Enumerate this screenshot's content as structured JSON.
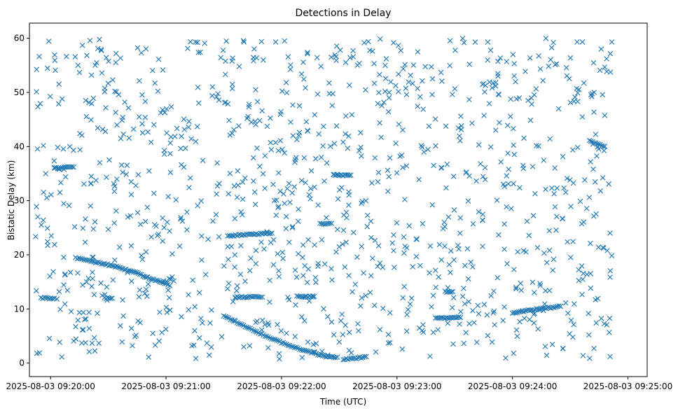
{
  "chart_data": {
    "type": "scatter",
    "title": "Detections in Delay",
    "xlabel": "Time (UTC)",
    "ylabel": "Bistatic Delay (km)",
    "marker": "x",
    "color": "#1f77b4",
    "grid": false,
    "xlim": [
      "2025-08-03 09:19:49",
      "2025-08-03 09:25:10"
    ],
    "ylim": [
      -2.5,
      62.8
    ],
    "x_ticks": [
      "2025-08-03 09:20:00",
      "2025-08-03 09:21:00",
      "2025-08-03 09:22:00",
      "2025-08-03 09:23:00",
      "2025-08-03 09:24:00",
      "2025-08-03 09:25:00"
    ],
    "y_ticks": [
      0,
      10,
      20,
      30,
      40,
      50,
      60
    ],
    "x_range_data": [
      "2025-08-03 09:19:52",
      "2025-08-03 09:24:52"
    ],
    "series": [
      {
        "kind": "track",
        "points": [
          [
            "2025-08-03 09:20:13",
            19.4
          ],
          [
            "2025-08-03 09:20:20",
            18.9
          ],
          [
            "2025-08-03 09:20:28",
            18.3
          ],
          [
            "2025-08-03 09:20:36",
            17.6
          ],
          [
            "2025-08-03 09:20:44",
            16.7
          ],
          [
            "2025-08-03 09:20:52",
            15.6
          ],
          [
            "2025-08-03 09:21:00",
            14.6
          ],
          [
            "2025-08-03 09:21:02",
            14.3
          ]
        ]
      },
      {
        "kind": "track",
        "points": [
          [
            "2025-08-03 09:21:30",
            8.7
          ],
          [
            "2025-08-03 09:21:36",
            7.6
          ],
          [
            "2025-08-03 09:21:42",
            6.6
          ],
          [
            "2025-08-03 09:21:48",
            5.6
          ],
          [
            "2025-08-03 09:21:54",
            4.7
          ],
          [
            "2025-08-03 09:22:00",
            3.8
          ],
          [
            "2025-08-03 09:22:06",
            3.0
          ],
          [
            "2025-08-03 09:22:12",
            2.3
          ],
          [
            "2025-08-03 09:22:18",
            1.7
          ],
          [
            "2025-08-03 09:22:24",
            1.2
          ],
          [
            "2025-08-03 09:22:28",
            1.0
          ]
        ]
      },
      {
        "kind": "track",
        "points": [
          [
            "2025-08-03 09:22:32",
            0.7
          ],
          [
            "2025-08-03 09:22:38",
            0.8
          ],
          [
            "2025-08-03 09:22:44",
            1.2
          ]
        ]
      },
      {
        "kind": "track",
        "points": [
          [
            "2025-08-03 09:19:55",
            12.0
          ],
          [
            "2025-08-03 09:20:02",
            12.0
          ]
        ]
      },
      {
        "kind": "track",
        "points": [
          [
            "2025-08-03 09:21:36",
            12.2
          ],
          [
            "2025-08-03 09:21:50",
            12.2
          ]
        ]
      },
      {
        "kind": "track",
        "points": [
          [
            "2025-08-03 09:21:32",
            23.5
          ],
          [
            "2025-08-03 09:21:55",
            24.0
          ]
        ]
      },
      {
        "kind": "track",
        "points": [
          [
            "2025-08-03 09:22:27",
            34.7
          ],
          [
            "2025-08-03 09:22:36",
            34.7
          ]
        ]
      },
      {
        "kind": "track",
        "points": [
          [
            "2025-08-03 09:22:20",
            25.7
          ],
          [
            "2025-08-03 09:22:26",
            25.8
          ]
        ]
      },
      {
        "kind": "track",
        "points": [
          [
            "2025-08-03 09:22:08",
            12.3
          ],
          [
            "2025-08-03 09:22:17",
            12.3
          ]
        ]
      },
      {
        "kind": "track",
        "points": [
          [
            "2025-08-03 09:23:20",
            8.3
          ],
          [
            "2025-08-03 09:23:33",
            8.4
          ]
        ]
      },
      {
        "kind": "track",
        "points": [
          [
            "2025-08-03 09:24:00",
            9.3
          ],
          [
            "2025-08-03 09:24:25",
            10.5
          ]
        ]
      },
      {
        "kind": "track",
        "points": [
          [
            "2025-08-03 09:24:40",
            41.0
          ],
          [
            "2025-08-03 09:24:48",
            40.0
          ]
        ]
      },
      {
        "kind": "track",
        "points": [
          [
            "2025-08-03 09:20:28",
            12.0
          ],
          [
            "2025-08-03 09:20:32",
            12.0
          ]
        ]
      },
      {
        "kind": "track",
        "points": [
          [
            "2025-08-03 09:20:02",
            36.0
          ],
          [
            "2025-08-03 09:20:12",
            36.2
          ]
        ]
      },
      {
        "kind": "track",
        "points": [
          [
            "2025-08-03 09:23:25",
            13.2
          ],
          [
            "2025-08-03 09:23:29",
            13.2
          ]
        ]
      }
    ],
    "noise": {
      "count": 1100,
      "x_range": [
        "2025-08-03 09:19:52",
        "2025-08-03 09:24:52"
      ],
      "y_range": [
        0.5,
        60
      ]
    }
  }
}
